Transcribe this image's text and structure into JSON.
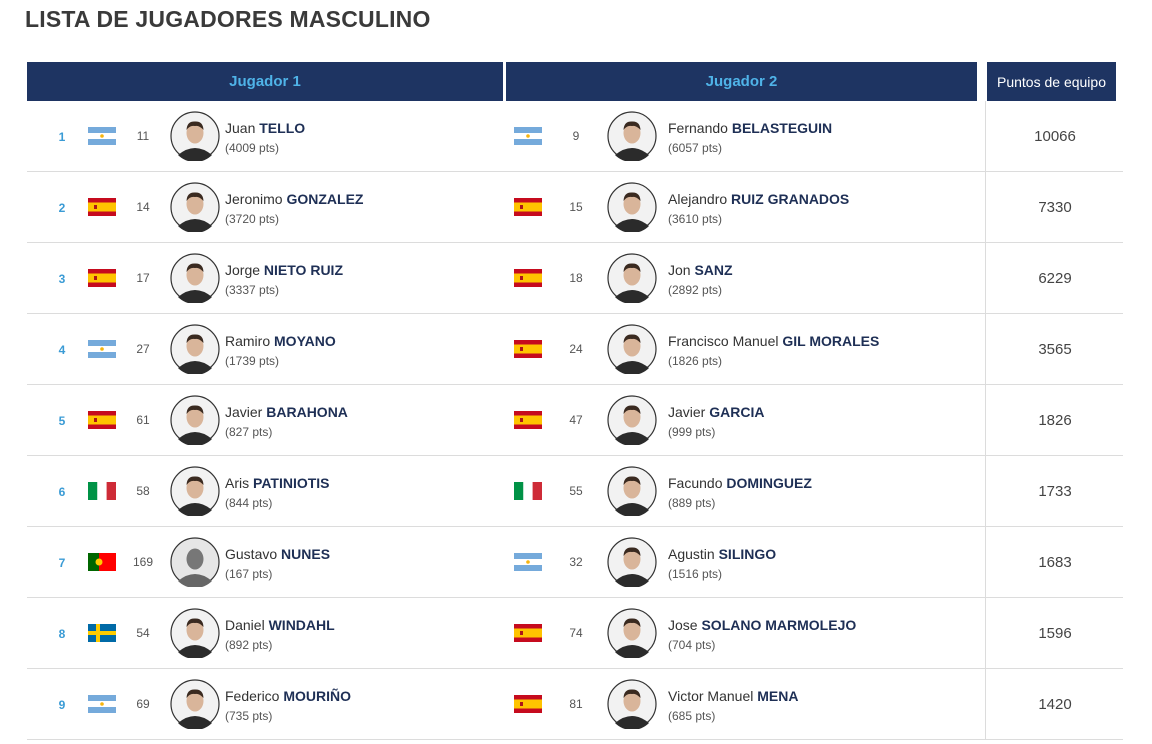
{
  "title": "LISTA DE JUGADORES MASCULINO",
  "headers": [
    "Jugador 1",
    "Jugador 2",
    "Puntos de equipo"
  ],
  "rows": [
    {
      "number": 1,
      "player1": {
        "rank": 11,
        "first": "Juan",
        "last": "TELLO",
        "points": "(4009 pts)"
      },
      "player2": {
        "rank": 9,
        "first": "Fernando",
        "last": "BELASTEGUIN",
        "points": "(6057 pts)"
      },
      "team_points": 10066
    },
    {
      "number": 2,
      "player1": {
        "rank": 14,
        "first": "Jeronimo",
        "last": "GONZALEZ",
        "points": "(3720 pts)"
      },
      "player2": {
        "rank": 15,
        "first": "Alejandro",
        "last": "RUIZ GRANADOS",
        "points": "(3610 pts)"
      },
      "team_points": 7330
    },
    {
      "number": 3,
      "player1": {
        "rank": 17,
        "first": "Jorge",
        "last": "NIETO RUIZ",
        "points": "(3337 pts)"
      },
      "player2": {
        "rank": 18,
        "first": "Jon",
        "last": "SANZ",
        "points": "(2892 pts)"
      },
      "team_points": 6229
    },
    {
      "number": 4,
      "player1": {
        "rank": 27,
        "first": "Ramiro",
        "last": "MOYANO",
        "points": "(1739 pts)"
      },
      "player2": {
        "rank": 24,
        "first": "Francisco Manuel",
        "last": "GIL MORALES",
        "points": "(1826 pts)"
      },
      "team_points": 3565
    },
    {
      "number": 5,
      "player1": {
        "rank": 61,
        "first": "Javier",
        "last": "BARAHONA",
        "points": "(827 pts)"
      },
      "player2": {
        "rank": 47,
        "first": "Javier",
        "last": "GARCIA",
        "points": "(999 pts)"
      },
      "team_points": 1826
    },
    {
      "number": 6,
      "player1": {
        "rank": 58,
        "first": "Aris",
        "last": "PATINIOTIS",
        "points": "(844 pts)"
      },
      "player2": {
        "rank": 55,
        "first": "Facundo",
        "last": "DOMINGUEZ",
        "points": "(889 pts)"
      },
      "team_points": 1733
    },
    {
      "number": 7,
      "player1": {
        "rank": 169,
        "first": "Gustavo",
        "last": "NUNES",
        "points": "(167 pts)"
      },
      "player2": {
        "rank": 32,
        "first": "Agustin",
        "last": "SILINGO",
        "points": "(1516 pts)"
      },
      "team_points": 1683
    },
    {
      "number": 8,
      "player1": {
        "rank": 54,
        "first": "Daniel",
        "last": "WINDAHL",
        "points": "(892 pts)"
      },
      "player2": {
        "rank": 74,
        "first": "Jose",
        "last": "SOLANO MARMOLEJO",
        "points": "(704 pts)"
      },
      "team_points": 1596
    },
    {
      "number": 9,
      "player1": {
        "rank": 69,
        "first": "Federico",
        "last": "MOURIÑO",
        "points": "(735 pts)"
      },
      "player2": {
        "rank": 81,
        "first": "Victor Manuel",
        "last": "MENA",
        "points": "(685 pts)"
      },
      "team_points": 1420
    }
  ]
}
